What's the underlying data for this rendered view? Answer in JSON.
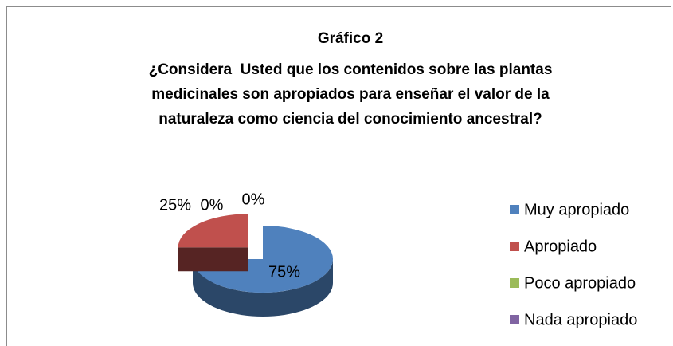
{
  "chart_data": {
    "type": "pie",
    "title": "Gráfico 2",
    "subtitle": "¿Considera  Usted que los contenidos sobre las plantas medicinales son apropiados para enseñar el valor de la naturaleza como ciencia del conocimiento ancestral?",
    "categories": [
      "Muy apropiado",
      "Apropiado",
      "Poco apropiado",
      "Nada apropiado"
    ],
    "values": [
      75,
      25,
      0,
      0
    ],
    "value_labels": [
      "75%",
      "25%",
      "0%",
      "0%"
    ],
    "colors": [
      "#4f81bd",
      "#c0504d",
      "#9bbb59",
      "#8064a2"
    ],
    "legend": "right"
  }
}
